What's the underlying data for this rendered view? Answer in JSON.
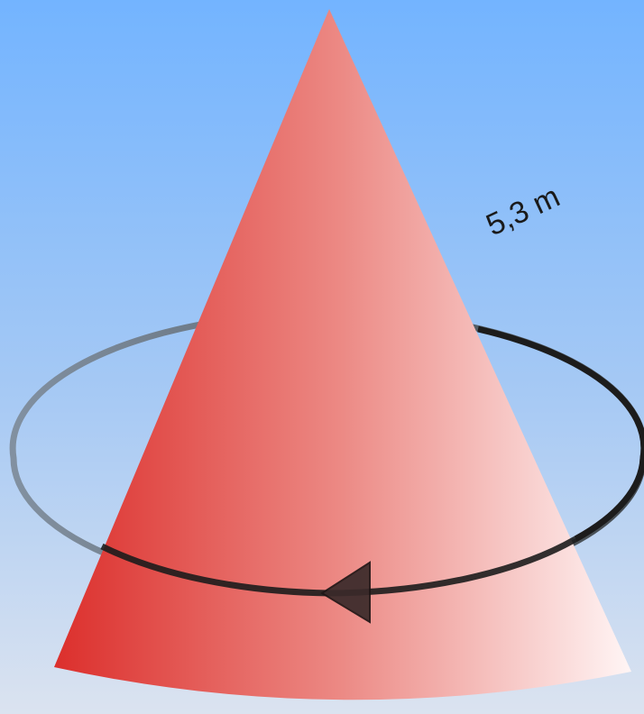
{
  "figure": {
    "slant_label": "5,3 m"
  },
  "colors": {
    "background_top": "#73b4ff",
    "background_bottom": "#dbe3f0",
    "cone_light": "#fff5f5",
    "cone_mid": "#ec8a85",
    "cone_dark": "#dc2f2c",
    "ring_front": "#1c1c1c",
    "ring_back": "#7f8d9c",
    "arrow": "#3a2a2a",
    "label": "#1a1a1a"
  },
  "icons": {
    "direction": "arrowhead-left-icon"
  }
}
